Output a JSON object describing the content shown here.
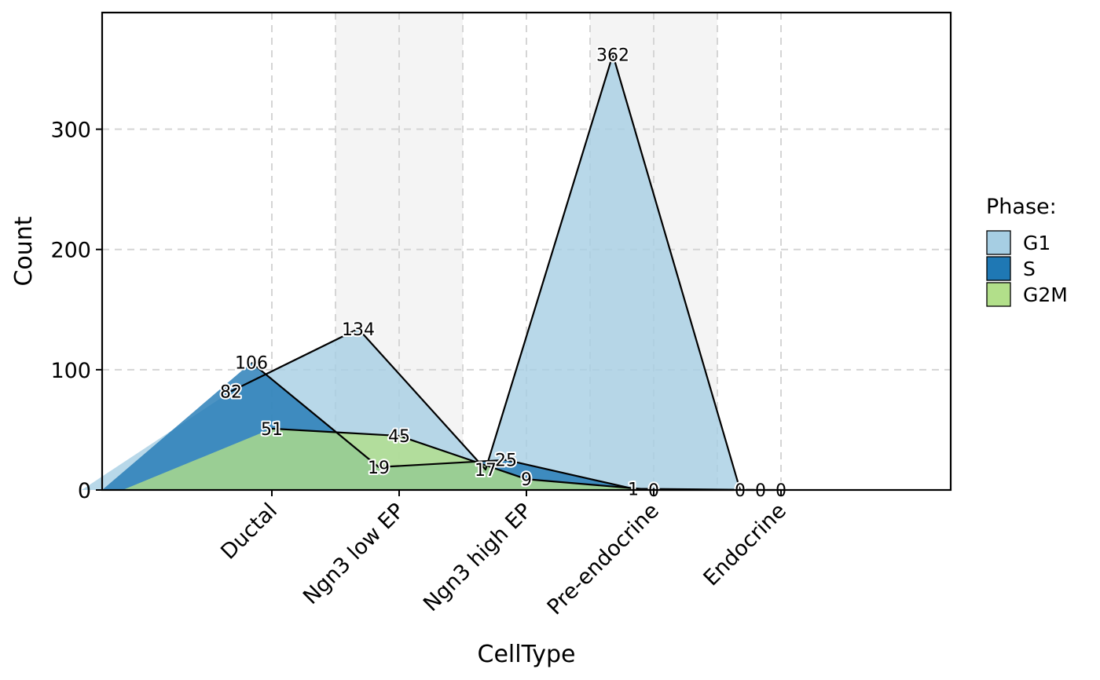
{
  "chart_data": {
    "type": "area",
    "xlabel": "CellType",
    "ylabel": "Count",
    "categories": [
      "Ductal",
      "Ngn3 low EP",
      "Ngn3 high EP",
      "Pre-endocrine",
      "Endocrine"
    ],
    "series": [
      {
        "name": "G1",
        "values": [
          82,
          134,
          17,
          362,
          0
        ],
        "color": "#A6CEE3"
      },
      {
        "name": "S",
        "values": [
          106,
          19,
          25,
          1,
          0
        ],
        "color": "#1F78B4"
      },
      {
        "name": "G2M",
        "values": [
          51,
          45,
          9,
          0,
          0
        ],
        "color": "#B2DF8A"
      }
    ],
    "ylim": [
      0,
      397
    ],
    "yticks": [
      0,
      100,
      200,
      300
    ],
    "legend": {
      "title": "Phase:",
      "position": "right"
    },
    "grid": true,
    "alternating_bands": true,
    "band_color": "#F4F4F4",
    "grid_color": "#D5D5D5"
  }
}
